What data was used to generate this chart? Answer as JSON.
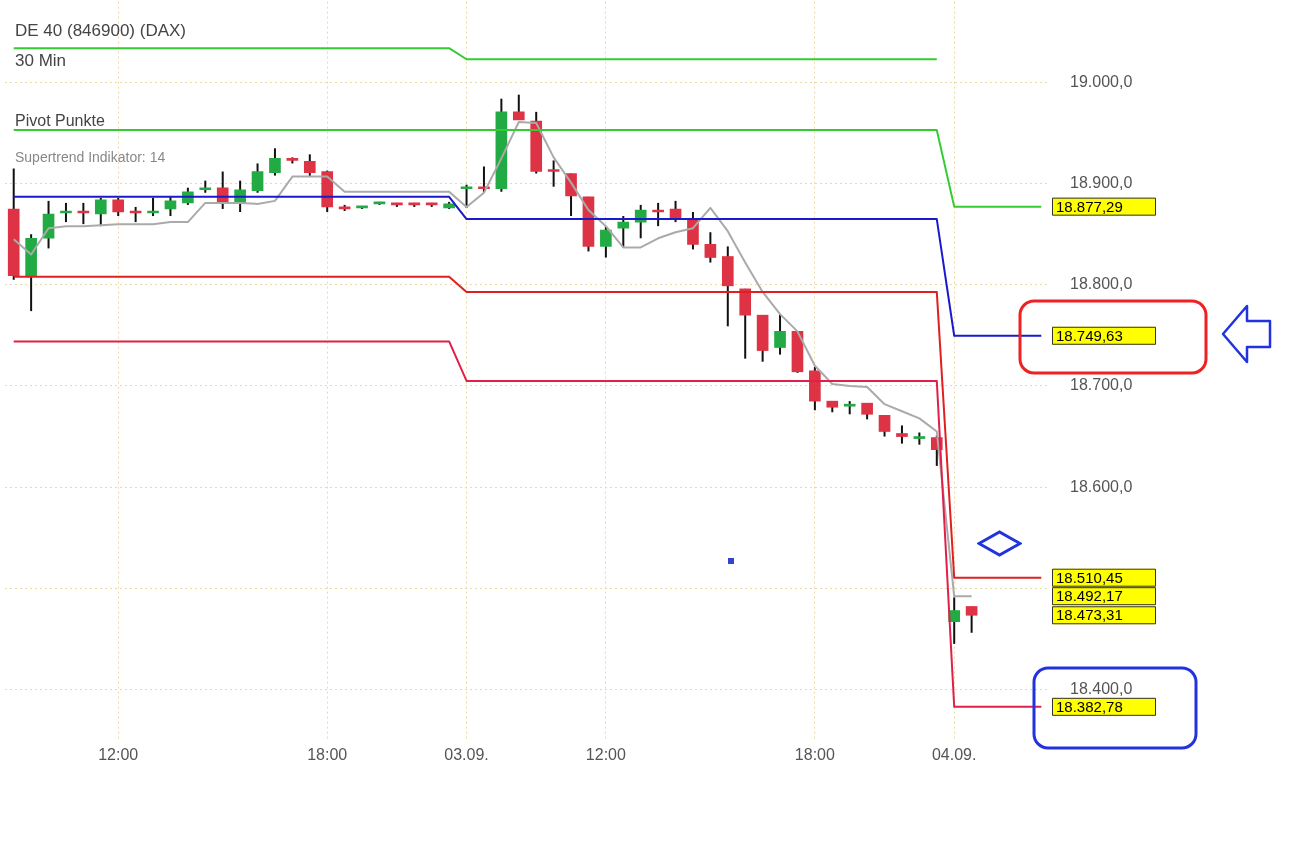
{
  "chart_data": {
    "type": "candlestick",
    "title": "DE 40 (846900) (DAX)",
    "subtitle": "30 Min",
    "categories": [
      null,
      null,
      null,
      null,
      null,
      null,
      "12:00",
      null,
      null,
      null,
      null,
      null,
      null,
      null,
      null,
      null,
      null,
      null,
      "18:00",
      null,
      null,
      null,
      null,
      null,
      null,
      null,
      "03.09.",
      null,
      null,
      null,
      null,
      null,
      null,
      null,
      "12:00",
      null,
      null,
      null,
      null,
      null,
      null,
      null,
      null,
      null,
      null,
      null,
      "18:00",
      null,
      null,
      null,
      null,
      null,
      null,
      null,
      "04.09.",
      null,
      null,
      null,
      null,
      null
    ],
    "ohlc": [
      [
        18875,
        18915,
        18805,
        18809
      ],
      [
        18809,
        18850,
        18774,
        18846
      ],
      [
        18846,
        18883,
        18836,
        18870
      ],
      [
        18871,
        18881,
        18862,
        18872
      ],
      [
        18873,
        18881,
        18860,
        18871
      ],
      [
        18870,
        18886,
        18858,
        18884
      ],
      [
        18884,
        18886,
        18868,
        18872
      ],
      [
        18873,
        18877,
        18862,
        18871
      ],
      [
        18871,
        18886,
        18868,
        18873
      ],
      [
        18875,
        18887,
        18868,
        18883
      ],
      [
        18881,
        18896,
        18879,
        18892
      ],
      [
        18894,
        18903,
        18891,
        18896
      ],
      [
        18896,
        18912,
        18875,
        18881
      ],
      [
        18881,
        18903,
        18872,
        18894
      ],
      [
        18893,
        18920,
        18891,
        18912
      ],
      [
        18911,
        18935,
        18908,
        18925
      ],
      [
        18925,
        18926,
        18920,
        18923
      ],
      [
        18922,
        18929,
        18907,
        18911
      ],
      [
        18912,
        18913,
        18872,
        18877
      ],
      [
        18877,
        18879,
        18873,
        18875
      ],
      [
        18876,
        18878,
        18875,
        18877
      ],
      [
        18880,
        18882,
        18879,
        18881
      ],
      [
        18880,
        18881,
        18877,
        18879
      ],
      [
        18880,
        18881,
        18877,
        18879
      ],
      [
        18880,
        18881,
        18877,
        18879
      ],
      [
        18876,
        18882,
        18875,
        18880
      ],
      [
        18895,
        18899,
        18876,
        18897
      ],
      [
        18897,
        18917,
        18891,
        18895
      ],
      [
        18895,
        18984,
        18892,
        18971
      ],
      [
        18971,
        18988,
        18963,
        18963
      ],
      [
        18962,
        18971,
        18910,
        18912
      ],
      [
        18914,
        18923,
        18897,
        18912
      ],
      [
        18910,
        18910,
        18868,
        18888
      ],
      [
        18887,
        18887,
        18833,
        18838
      ],
      [
        18838,
        18858,
        18827,
        18854
      ],
      [
        18856,
        18868,
        18837,
        18862
      ],
      [
        18862,
        18879,
        18846,
        18874
      ],
      [
        18874,
        18881,
        18858,
        18872
      ],
      [
        18875,
        18883,
        18862,
        18865
      ],
      [
        18865,
        18872,
        18835,
        18840
      ],
      [
        18840,
        18852,
        18822,
        18827
      ],
      [
        18828,
        18838,
        18759,
        18799
      ],
      [
        18796,
        18796,
        18727,
        18770
      ],
      [
        18770,
        18770,
        18724,
        18735
      ],
      [
        18738,
        18771,
        18731,
        18754
      ],
      [
        18754,
        18754,
        18713,
        18714
      ],
      [
        18715,
        18719,
        18676,
        18685
      ],
      [
        18685,
        18685,
        18674,
        18679
      ],
      [
        18680,
        18685,
        18672,
        18682
      ],
      [
        18683,
        18683,
        18667,
        18672
      ],
      [
        18671,
        18671,
        18650,
        18655
      ],
      [
        18653,
        18661,
        18643,
        18650
      ],
      [
        18648,
        18654,
        18642,
        18650
      ],
      [
        18649,
        18651,
        18621,
        18637
      ],
      [
        18467,
        18491,
        18445,
        18478
      ],
      [
        18482,
        18482,
        18456,
        18473.31
      ],
      null,
      null,
      null,
      null
    ],
    "value_labels": [
      null,
      null,
      null,
      null,
      null,
      null,
      null,
      null,
      null,
      null,
      null,
      null,
      null,
      null,
      null,
      null,
      null,
      null,
      null,
      null,
      null,
      null,
      null,
      null,
      null,
      null,
      null,
      null,
      null,
      null,
      null,
      null,
      null,
      null,
      null,
      null,
      null,
      null,
      null,
      null,
      null,
      null,
      null,
      null,
      null,
      null,
      null,
      null,
      null,
      null,
      null,
      null,
      null,
      null,
      null,
      "18.473,31",
      null,
      null,
      null,
      null
    ],
    "colors": [
      "#dd3344",
      "#22aa44",
      "#22aa44",
      "#22aa44",
      "#dd3344",
      "#22aa44",
      "#dd3344",
      "#dd3344",
      "#22aa44",
      "#22aa44",
      "#22aa44",
      "#22aa44",
      "#dd3344",
      "#22aa44",
      "#22aa44",
      "#22aa44",
      "#dd3344",
      "#dd3344",
      "#dd3344",
      "#dd3344",
      "#22aa44",
      "#22aa44",
      "#dd3344",
      "#dd3344",
      "#dd3344",
      "#22aa44",
      "#22aa44",
      "#dd3344",
      "#22aa44",
      "#dd3344",
      "#dd3344",
      "#dd3344",
      "#dd3344",
      "#dd3344",
      "#22aa44",
      "#22aa44",
      "#22aa44",
      "#dd3344",
      "#dd3344",
      "#dd3344",
      "#dd3344",
      "#dd3344",
      "#dd3344",
      "#dd3344",
      "#22aa44",
      "#dd3344",
      "#dd3344",
      "#dd3344",
      "#22aa44",
      "#dd3344",
      "#dd3344",
      "#dd3344",
      "#22aa44",
      "#dd3344",
      "#22aa44",
      "#dd3344",
      null,
      null,
      null,
      null
    ],
    "series": [
      {
        "type": "line",
        "color": "#33cc33",
        "values": [
          19034,
          19034,
          19034,
          19034,
          19034,
          19034,
          19034,
          19034,
          19034,
          19034,
          19034,
          19034,
          19034,
          19034,
          19034,
          19034,
          19034,
          19034,
          19034,
          19034,
          19034,
          19034,
          19034,
          19034,
          19034,
          19034,
          19023,
          19023,
          19023,
          19023,
          19023,
          19023,
          19023,
          19023,
          19023,
          19023,
          19023,
          19023,
          19023,
          19023,
          19023,
          19023,
          19023,
          19023,
          19023,
          19023,
          19023,
          19023,
          19023,
          19023,
          19023,
          19023,
          19023,
          19023,
          null,
          null,
          null,
          null,
          null,
          null
        ]
      },
      {
        "type": "line",
        "color": "#33cc33",
        "values": [
          18953,
          18953,
          18953,
          18953,
          18953,
          18953,
          18953,
          18953,
          18953,
          18953,
          18953,
          18953,
          18953,
          18953,
          18953,
          18953,
          18953,
          18953,
          18953,
          18953,
          18953,
          18953,
          18953,
          18953,
          18953,
          18953,
          18953,
          18953,
          18953,
          18953,
          18953,
          18953,
          18953,
          18953,
          18953,
          18953,
          18953,
          18953,
          18953,
          18953,
          18953,
          18953,
          18953,
          18953,
          18953,
          18953,
          18953,
          18953,
          18953,
          18953,
          18953,
          18953,
          18953,
          18953,
          18877.29,
          18877.29,
          18877.29,
          18877.29,
          18877.29,
          18877.29
        ],
        "value_labels": [
          null,
          null,
          null,
          null,
          null,
          null,
          null,
          null,
          null,
          null,
          null,
          null,
          null,
          null,
          null,
          null,
          null,
          null,
          null,
          null,
          null,
          null,
          null,
          null,
          null,
          null,
          null,
          null,
          null,
          null,
          null,
          null,
          null,
          null,
          null,
          null,
          null,
          null,
          null,
          null,
          null,
          null,
          null,
          null,
          null,
          null,
          null,
          null,
          null,
          null,
          null,
          null,
          null,
          null,
          null,
          null,
          null,
          null,
          null,
          "18.877,29"
        ]
      },
      {
        "type": "line",
        "color": "#1a1acc",
        "values": [
          18887,
          18887,
          18887,
          18887,
          18887,
          18887,
          18887,
          18887,
          18887,
          18887,
          18887,
          18887,
          18887,
          18887,
          18887,
          18887,
          18887,
          18887,
          18887,
          18887,
          18887,
          18887,
          18887,
          18887,
          18887,
          18887,
          18865,
          18865,
          18865,
          18865,
          18865,
          18865,
          18865,
          18865,
          18865,
          18865,
          18865,
          18865,
          18865,
          18865,
          18865,
          18865,
          18865,
          18865,
          18865,
          18865,
          18865,
          18865,
          18865,
          18865,
          18865,
          18865,
          18865,
          18865,
          18749.63,
          18749.63,
          18749.63,
          18749.63,
          18749.63,
          18749.63
        ],
        "value_labels": [
          null,
          null,
          null,
          null,
          null,
          null,
          null,
          null,
          null,
          null,
          null,
          null,
          null,
          null,
          null,
          null,
          null,
          null,
          null,
          null,
          null,
          null,
          null,
          null,
          null,
          null,
          null,
          null,
          null,
          null,
          null,
          null,
          null,
          null,
          null,
          null,
          null,
          null,
          null,
          null,
          null,
          null,
          null,
          null,
          null,
          null,
          null,
          null,
          null,
          null,
          null,
          null,
          null,
          null,
          null,
          null,
          null,
          null,
          null,
          "18.749,63"
        ]
      },
      {
        "type": "line",
        "color": "#e02020",
        "values": [
          18808,
          18808,
          18808,
          18808,
          18808,
          18808,
          18808,
          18808,
          18808,
          18808,
          18808,
          18808,
          18808,
          18808,
          18808,
          18808,
          18808,
          18808,
          18808,
          18808,
          18808,
          18808,
          18808,
          18808,
          18808,
          18808,
          18793,
          18793,
          18793,
          18793,
          18793,
          18793,
          18793,
          18793,
          18793,
          18793,
          18793,
          18793,
          18793,
          18793,
          18793,
          18793,
          18793,
          18793,
          18793,
          18793,
          18793,
          18793,
          18793,
          18793,
          18793,
          18793,
          18793,
          18793,
          18510.45,
          18510.45,
          18510.45,
          18510.45,
          18510.45,
          18510.45
        ],
        "value_labels": [
          null,
          null,
          null,
          null,
          null,
          null,
          null,
          null,
          null,
          null,
          null,
          null,
          null,
          null,
          null,
          null,
          null,
          null,
          null,
          null,
          null,
          null,
          null,
          null,
          null,
          null,
          null,
          null,
          null,
          null,
          null,
          null,
          null,
          null,
          null,
          null,
          null,
          null,
          null,
          null,
          null,
          null,
          null,
          null,
          null,
          null,
          null,
          null,
          null,
          null,
          null,
          null,
          null,
          null,
          null,
          null,
          null,
          null,
          null,
          "18.510,45"
        ]
      },
      {
        "type": "line",
        "color": "#e0204a",
        "values": [
          18744,
          18744,
          18744,
          18744,
          18744,
          18744,
          18744,
          18744,
          18744,
          18744,
          18744,
          18744,
          18744,
          18744,
          18744,
          18744,
          18744,
          18744,
          18744,
          18744,
          18744,
          18744,
          18744,
          18744,
          18744,
          18744,
          18705,
          18705,
          18705,
          18705,
          18705,
          18705,
          18705,
          18705,
          18705,
          18705,
          18705,
          18705,
          18705,
          18705,
          18705,
          18705,
          18705,
          18705,
          18705,
          18705,
          18705,
          18705,
          18705,
          18705,
          18705,
          18705,
          18705,
          18705,
          18382.78,
          18382.78,
          18382.78,
          18382.78,
          18382.78,
          18382.78
        ],
        "value_labels": [
          null,
          null,
          null,
          null,
          null,
          null,
          null,
          null,
          null,
          null,
          null,
          null,
          null,
          null,
          null,
          null,
          null,
          null,
          null,
          null,
          null,
          null,
          null,
          null,
          null,
          null,
          null,
          null,
          null,
          null,
          null,
          null,
          null,
          null,
          null,
          null,
          null,
          null,
          null,
          null,
          null,
          null,
          null,
          null,
          null,
          null,
          null,
          null,
          null,
          null,
          null,
          null,
          null,
          null,
          null,
          null,
          null,
          null,
          null,
          "18.382,78"
        ]
      },
      {
        "type": "line",
        "color": "#aaaaaa",
        "values": [
          18845,
          18830,
          18856,
          18858,
          18858,
          18859,
          18860,
          18860,
          18860,
          18862,
          18862,
          18881,
          18881,
          18881,
          18880,
          18883,
          18907,
          18907,
          18907,
          18892,
          18892,
          18892,
          18892,
          18892,
          18892,
          18892,
          18877,
          18891,
          18925,
          18961,
          18960,
          18926,
          18901,
          18874,
          18858,
          18837,
          18837,
          18846,
          18852,
          18856,
          18876,
          18853,
          18822,
          18793,
          18771,
          18754,
          18720,
          18702,
          18700,
          18699,
          18682,
          18675,
          18668,
          18655,
          18492,
          18492.17,
          null,
          null,
          null,
          null
        ]
      }
    ],
    "ylim": [
      18350,
      19080
    ],
    "yticks": [
      {
        "value": 18400,
        "label": "18.400,0"
      },
      {
        "value": 18500,
        "label": null
      },
      {
        "value": 18600,
        "label": "18.600,0"
      },
      {
        "value": 18700,
        "label": "18.700,0"
      },
      {
        "value": 18800,
        "label": "18.800,0"
      },
      {
        "value": 18900,
        "label": "18.900,0"
      },
      {
        "value": 19000,
        "label": "19.000,0"
      }
    ],
    "grid": true,
    "legend": false,
    "annotations": [
      "Pivot Punkte",
      "Supertrend Indikator: 14",
      "18.492,17"
    ]
  }
}
